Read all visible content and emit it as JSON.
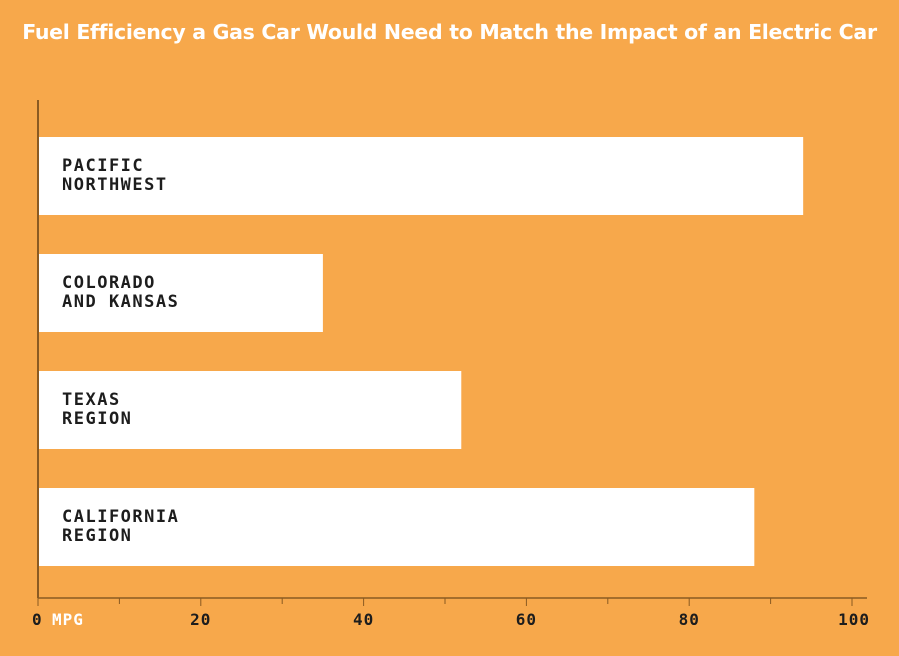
{
  "chart_data": {
    "type": "bar",
    "orientation": "horizontal",
    "title": "Fuel Efficiency a Gas Car Would Need to Match the Impact of an Electric Car",
    "categories": [
      [
        "PACIFIC",
        "NORTHWEST"
      ],
      [
        "COLORADO",
        "AND KANSAS"
      ],
      [
        "TEXAS",
        "REGION"
      ],
      [
        "CALIFORNIA",
        "REGION"
      ]
    ],
    "values": [
      94,
      35,
      52,
      88
    ],
    "xlim": [
      0,
      100
    ],
    "xticks": [
      "0",
      "20",
      "40",
      "60",
      "80",
      "100"
    ],
    "xunit": "MPG",
    "xlabel": "",
    "ylabel": "",
    "grid": false,
    "colors": {
      "background": "#F7A84B",
      "bar": "#FFFFFF",
      "axis": "#8A5A22",
      "text": "#1D1D1D",
      "title": "#FFFFFF",
      "unit": "#FFFFFF"
    }
  }
}
